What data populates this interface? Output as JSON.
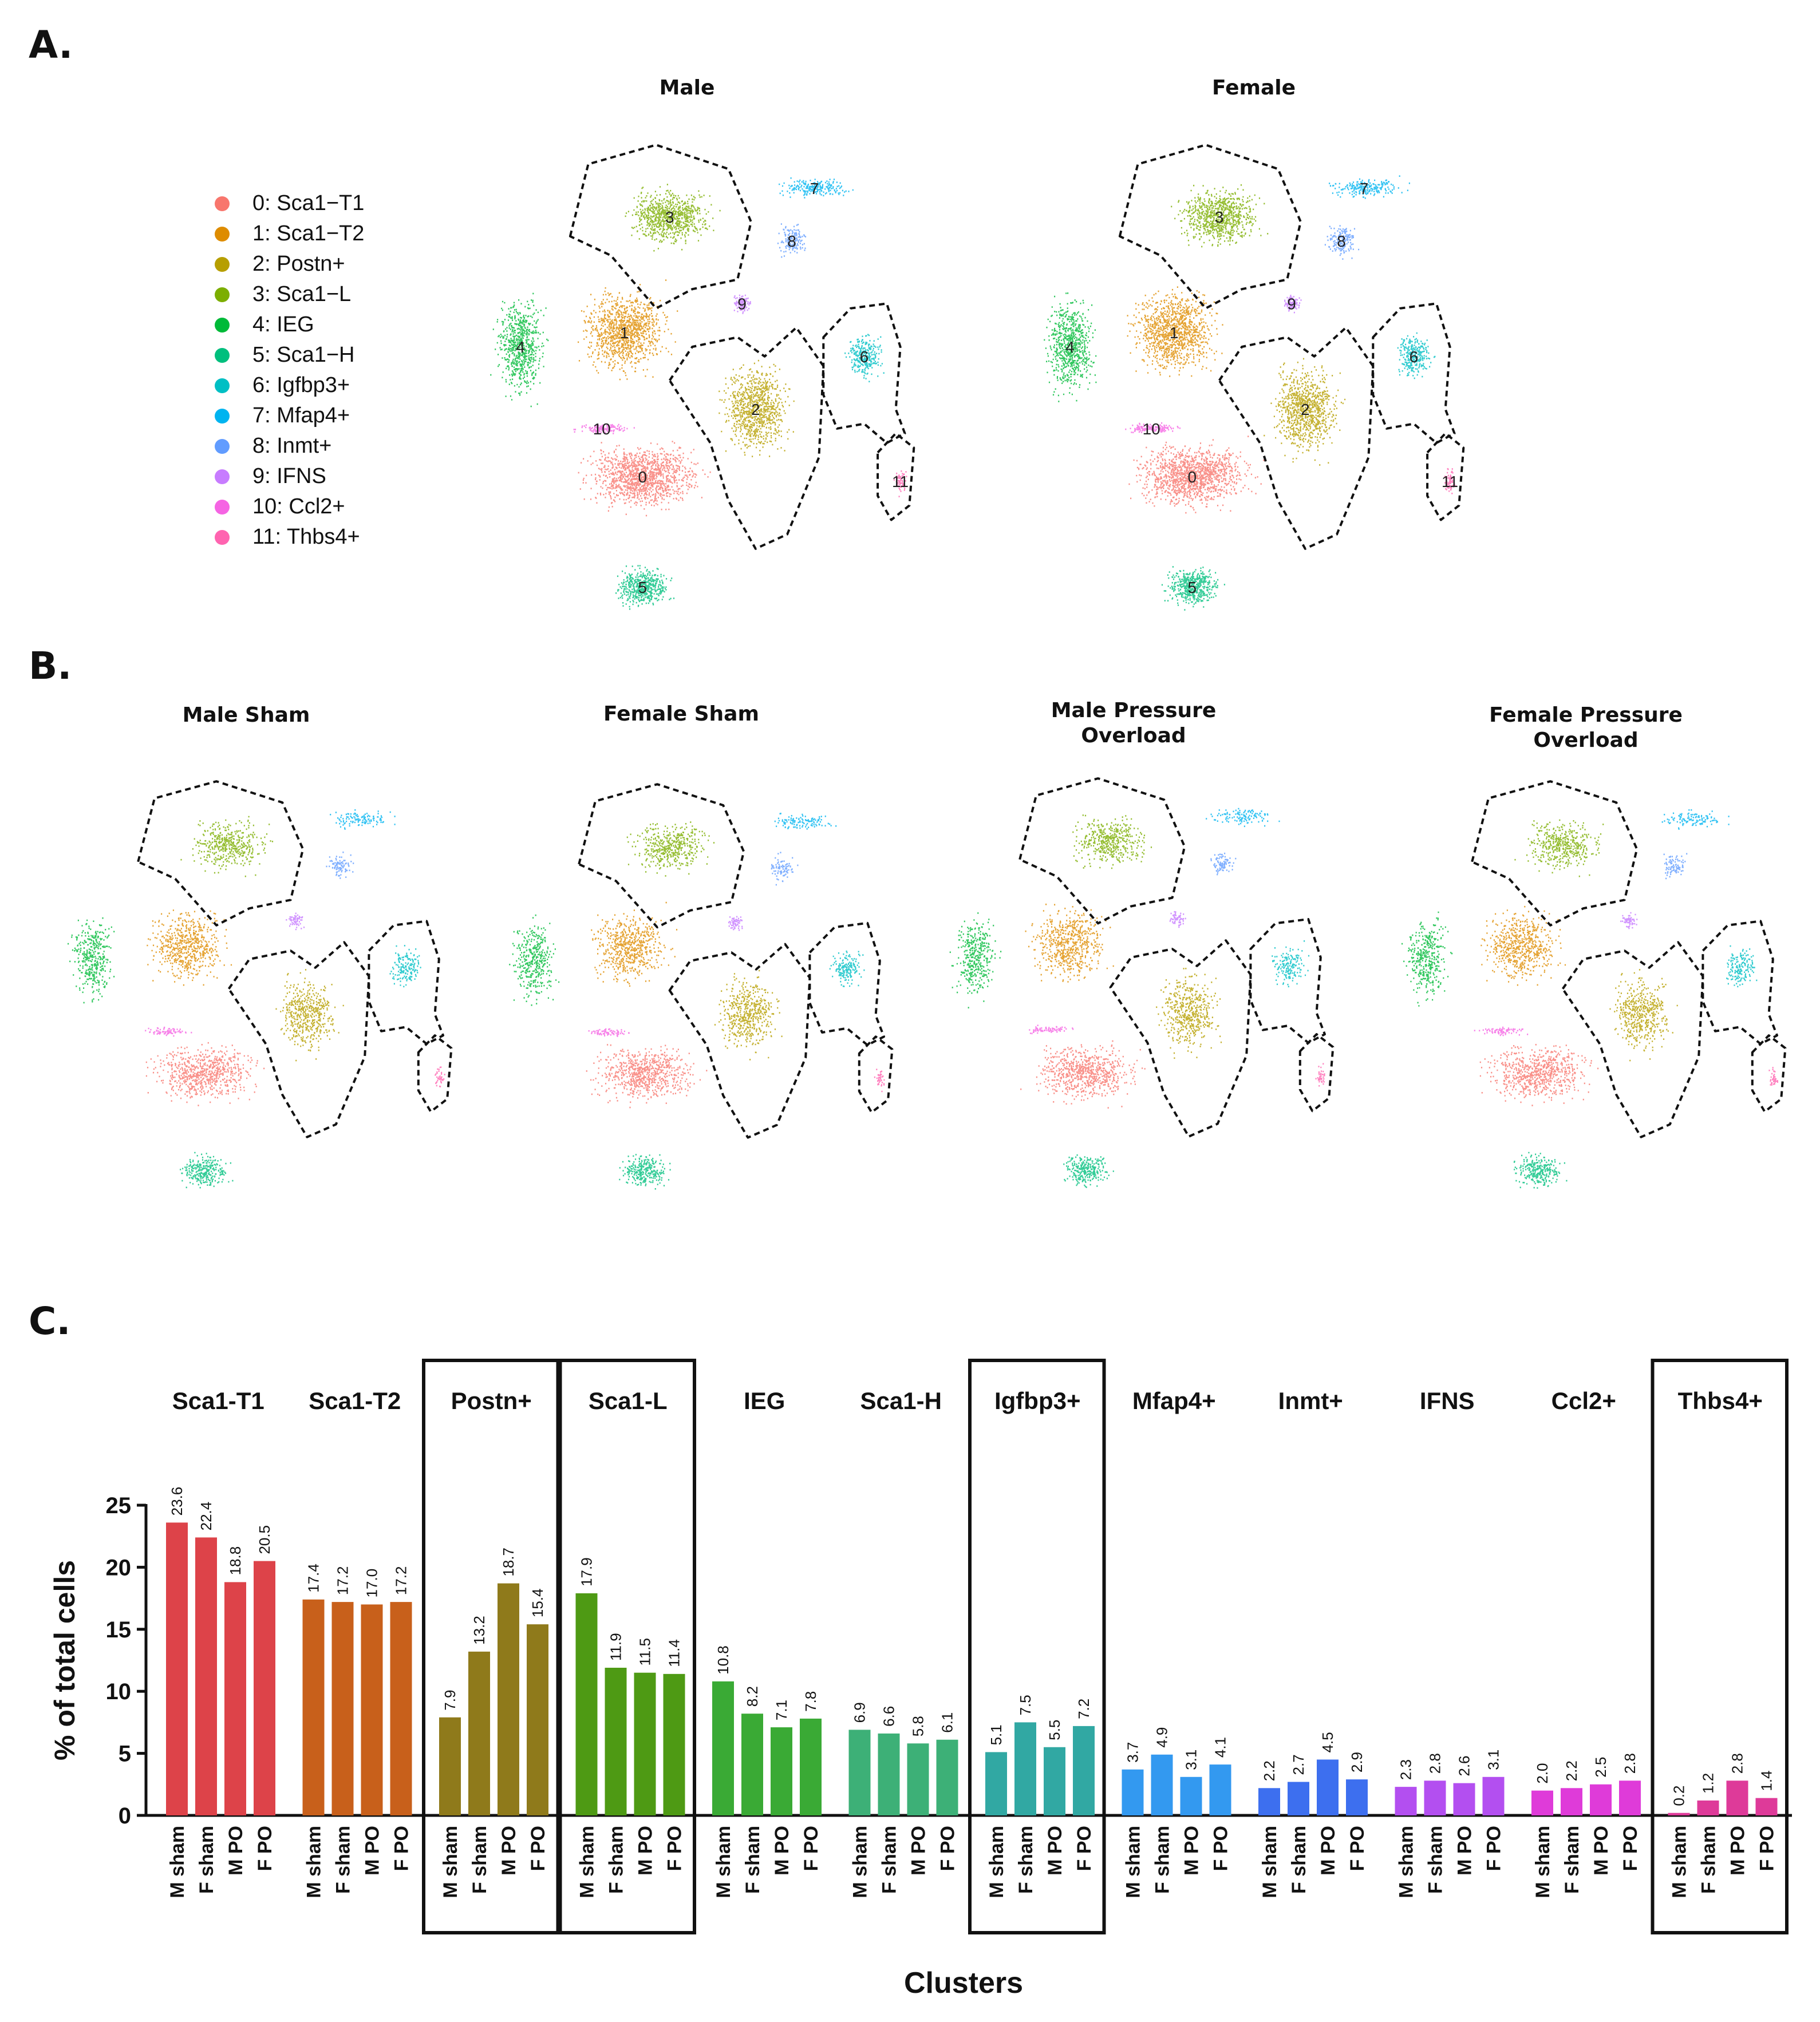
{
  "panels": {
    "a": "A.",
    "b": "B.",
    "c": "C."
  },
  "panel_a": {
    "titles": [
      "Male",
      "Female"
    ],
    "legend": [
      {
        "label": "0: Sca1−T1",
        "color": "#F8766D"
      },
      {
        "label": "1: Sca1−T2",
        "color": "#DE8C00"
      },
      {
        "label": "2: Postn+",
        "color": "#B79F00"
      },
      {
        "label": "3: Sca1−L",
        "color": "#7CAE00"
      },
      {
        "label": "4: IEG",
        "color": "#00BA38"
      },
      {
        "label": "5: Sca1−H",
        "color": "#00BF7D"
      },
      {
        "label": "6: Igfbp3+",
        "color": "#00BFC4"
      },
      {
        "label": "7: Mfap4+",
        "color": "#00B4F0"
      },
      {
        "label": "8: Inmt+",
        "color": "#619CFF"
      },
      {
        "label": "9: IFNS",
        "color": "#C77CFF"
      },
      {
        "label": "10: Ccl2+",
        "color": "#F564E3"
      },
      {
        "label": "11: Thbs4+",
        "color": "#FF64B0"
      }
    ],
    "cluster_numbers": [
      "0",
      "1",
      "2",
      "3",
      "4",
      "5",
      "6",
      "7",
      "8",
      "9",
      "10",
      "11"
    ]
  },
  "panel_b": {
    "titles": [
      "Male Sham",
      "Female Sham",
      "Male Pressure\nOverload",
      "Female Pressure\nOverload"
    ]
  },
  "chart_data": {
    "type": "bar",
    "title": "",
    "xlabel": "Clusters",
    "ylabel": "% of total cells",
    "ylim": [
      0,
      25
    ],
    "yticks": [
      0,
      5,
      10,
      15,
      20,
      25
    ],
    "groups": [
      "Sca1-T1",
      "Sca1-T2",
      "Postn+",
      "Sca1-L",
      "IEG",
      "Sca1-H",
      "Igfbp3+",
      "Mfap4+",
      "Inmt+",
      "IFNS",
      "Ccl2+",
      "Thbs4+"
    ],
    "categories": [
      "M sham",
      "F sham",
      "M PO",
      "F PO"
    ],
    "colors": [
      "#DD4349",
      "#C8601B",
      "#8F7A1B",
      "#4E9A14",
      "#3AAA35",
      "#3DB077",
      "#31A8A3",
      "#3399F0",
      "#3D6FEF",
      "#B34FF0",
      "#DF3BD9",
      "#DE3A99"
    ],
    "values": [
      [
        23.6,
        22.4,
        18.8,
        20.5
      ],
      [
        17.4,
        17.2,
        17.0,
        17.2
      ],
      [
        7.9,
        13.2,
        18.7,
        15.4
      ],
      [
        17.9,
        11.9,
        11.5,
        11.4
      ],
      [
        10.8,
        8.2,
        7.1,
        7.8
      ],
      [
        6.9,
        6.6,
        5.8,
        6.1
      ],
      [
        5.1,
        7.5,
        5.5,
        7.2
      ],
      [
        3.7,
        4.9,
        3.1,
        4.1
      ],
      [
        2.2,
        2.7,
        4.5,
        2.9
      ],
      [
        2.3,
        2.8,
        2.6,
        3.1
      ],
      [
        2.0,
        2.2,
        2.5,
        2.8
      ],
      [
        0.2,
        1.2,
        2.8,
        1.4
      ]
    ],
    "value_labels": [
      [
        "23.6",
        "22.4",
        "18.8",
        "20.5"
      ],
      [
        "17.4",
        "17.2",
        "17.0",
        "17.2"
      ],
      [
        "7.9",
        "13.2",
        "18.7",
        "15.4"
      ],
      [
        "17.9",
        "11.9",
        "11.5",
        "11.4"
      ],
      [
        "10.8",
        "8.2",
        "7.1",
        "7.8"
      ],
      [
        "6.9",
        "6.6",
        "5.8",
        "6.1"
      ],
      [
        "5.1",
        "7.5",
        "5.5",
        "7.2"
      ],
      [
        "3.7",
        "4.9",
        "3.1",
        "4.1"
      ],
      [
        "2.2",
        "2.7",
        "4.5",
        "2.9"
      ],
      [
        "2.3",
        "2.8",
        "2.6",
        "3.1"
      ],
      [
        "2.0",
        "2.2",
        "2.5",
        "2.8"
      ],
      [
        "0.2",
        "1.2",
        "2.8",
        "1.4"
      ]
    ],
    "highlighted_groups": [
      "Postn+",
      "Sca1-L",
      "Igfbp3+",
      "Thbs4+"
    ]
  }
}
